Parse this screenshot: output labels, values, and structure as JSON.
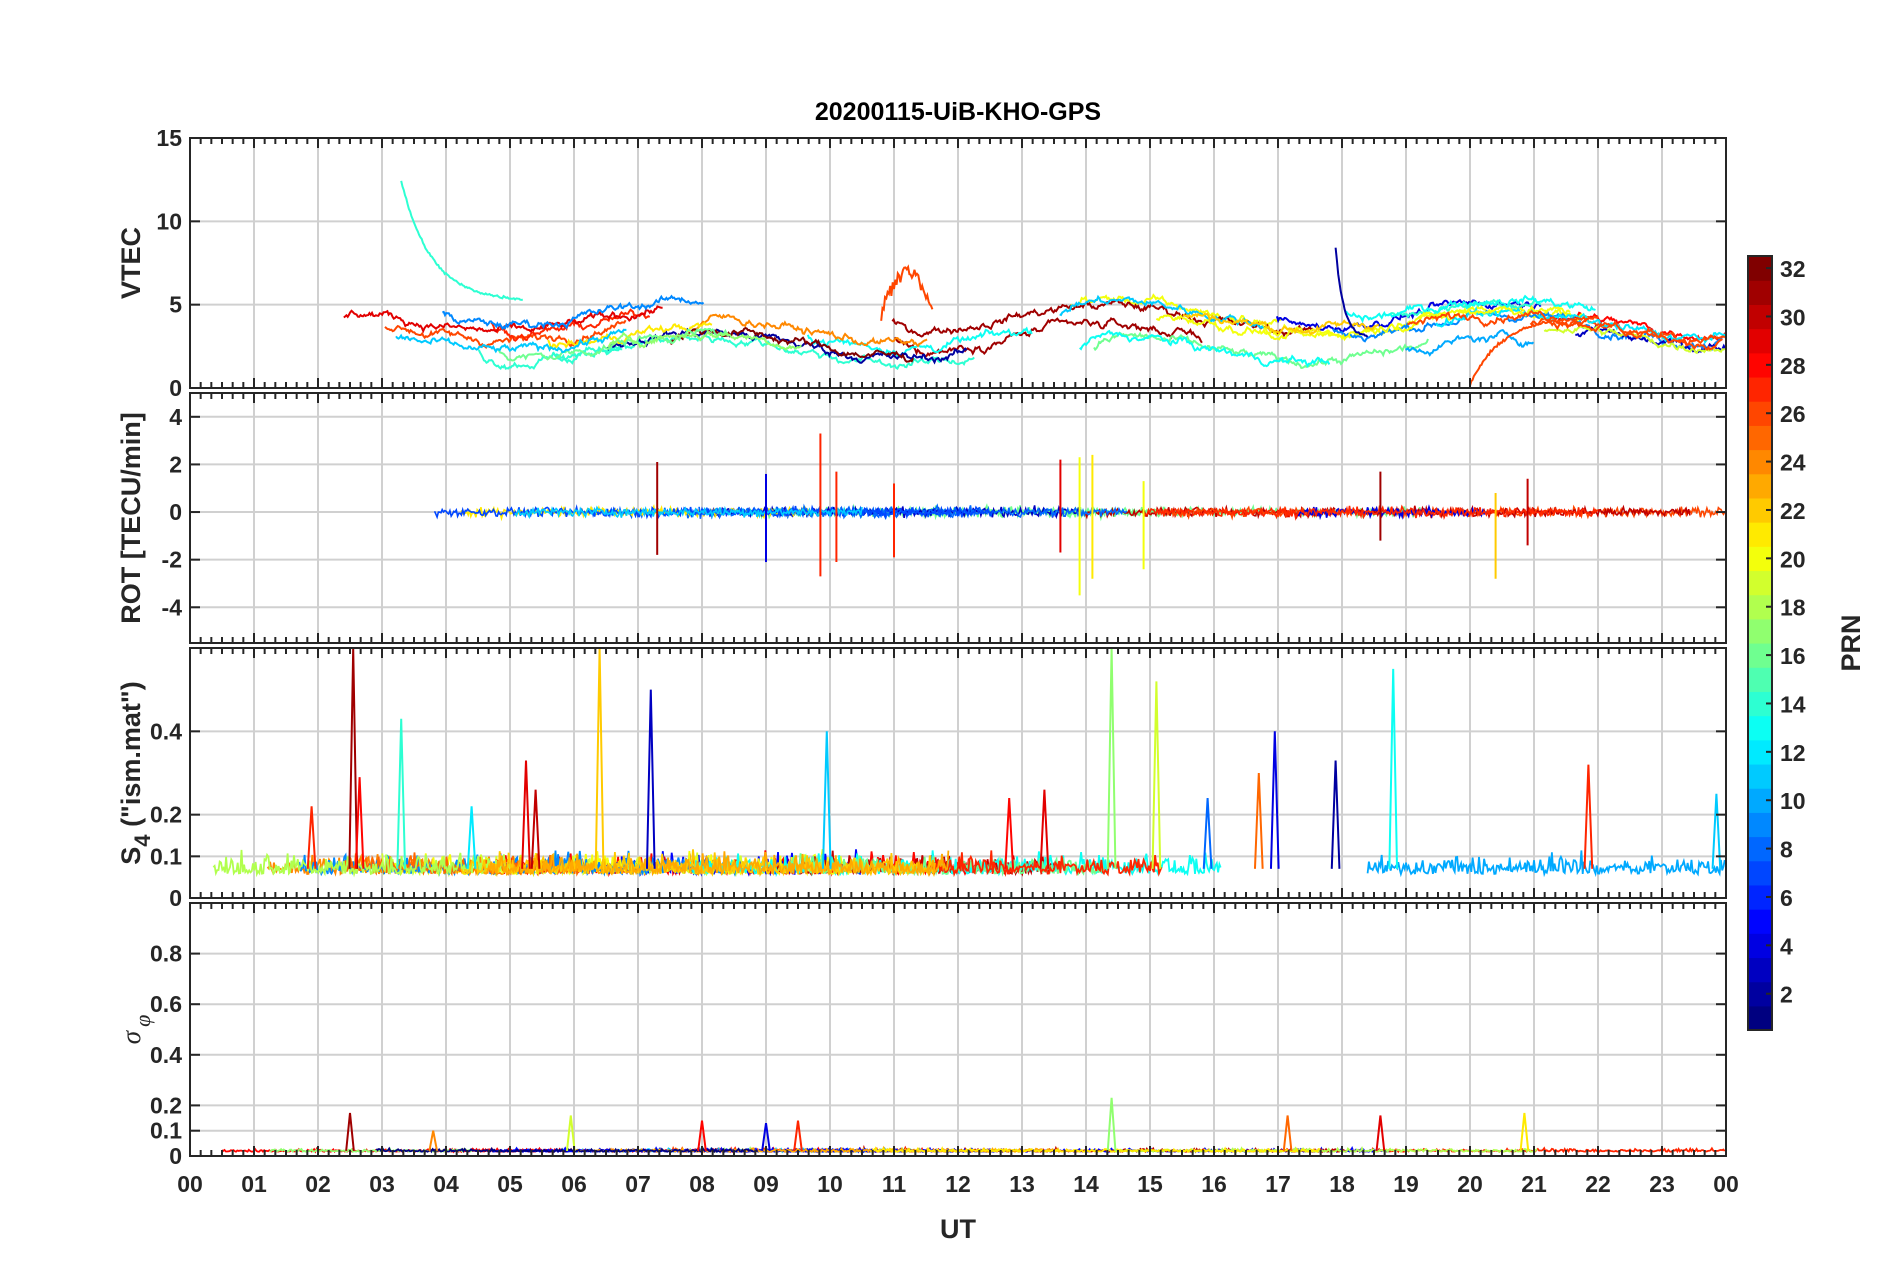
{
  "chart_data": {
    "type": "line",
    "title": "20200115-UiB-KHO-GPS",
    "xlabel": "UT",
    "x_tick_labels": [
      "00",
      "01",
      "02",
      "03",
      "04",
      "05",
      "06",
      "07",
      "08",
      "09",
      "10",
      "11",
      "12",
      "13",
      "14",
      "15",
      "16",
      "17",
      "18",
      "19",
      "20",
      "21",
      "22",
      "23",
      "00"
    ],
    "x_range_hours": [
      0,
      24
    ],
    "grid": true,
    "panels": [
      {
        "id": "vtec",
        "ylabel": "VTEC",
        "ylim": [
          0,
          15
        ],
        "yticks": [
          0,
          5,
          10,
          15
        ],
        "ytick_labels": [
          "0",
          "5",
          "10",
          "15"
        ],
        "series_summary": [
          {
            "prn": 14,
            "t_start": 3.3,
            "t_end": 5.2,
            "value_start": 12.4,
            "value_end": 5.2
          },
          {
            "prn": 2,
            "t_start": 17.9,
            "t_end": 18.4,
            "value_start": 8.4,
            "value_end": 3.0
          },
          {
            "prn": 26,
            "t_start": 10.8,
            "t_end": 11.6,
            "value_peak": 7.1
          },
          {
            "prn": 26,
            "t_start": 20.0,
            "t_end": 22.0,
            "value_start": 0.2,
            "value_end": 4.3
          }
        ],
        "typical_range": [
          1,
          6
        ]
      },
      {
        "id": "rot",
        "ylabel": "ROT [TECU/min]",
        "ylim": [
          -5.5,
          5
        ],
        "yticks": [
          -4,
          -2,
          0,
          2,
          4
        ],
        "ytick_labels": [
          "-4",
          "-2",
          "0",
          "2",
          "4"
        ],
        "spikes": [
          {
            "t": 7.3,
            "max": 2.1,
            "min": -1.8
          },
          {
            "t": 9.0,
            "max": 1.6,
            "min": -2.1
          },
          {
            "t": 9.85,
            "max": 3.3,
            "min": -2.7
          },
          {
            "t": 10.1,
            "max": 1.7,
            "min": -2.1
          },
          {
            "t": 11.0,
            "max": 1.2,
            "min": -1.9
          },
          {
            "t": 13.6,
            "max": 2.2,
            "min": -1.7
          },
          {
            "t": 13.9,
            "max": 2.3,
            "min": -3.5
          },
          {
            "t": 14.1,
            "max": 2.4,
            "min": -2.8
          },
          {
            "t": 14.9,
            "max": 1.3,
            "min": -2.4
          },
          {
            "t": 18.6,
            "max": 1.7,
            "min": -1.2
          },
          {
            "t": 20.4,
            "max": 0.8,
            "min": -2.8
          },
          {
            "t": 20.9,
            "max": 1.4,
            "min": -1.4
          }
        ]
      },
      {
        "id": "s4",
        "ylabel_main": "S",
        "ylabel_sub": "4",
        "ylabel_rest": " (\"ism.mat\")",
        "ylim": [
          0,
          0.6
        ],
        "yticks": [
          0,
          0.1,
          0.2,
          0.4
        ],
        "ytick_labels": [
          "0",
          "0.1",
          "0.2",
          "0.4"
        ],
        "baseline": 0.07,
        "spikes": [
          {
            "t": 1.9,
            "v": 0.22,
            "prn": 27
          },
          {
            "t": 2.55,
            "v": 0.6,
            "prn": 31
          },
          {
            "t": 2.65,
            "v": 0.29,
            "prn": 28
          },
          {
            "t": 3.3,
            "v": 0.43,
            "prn": 14
          },
          {
            "t": 4.4,
            "v": 0.22,
            "prn": 12
          },
          {
            "t": 5.25,
            "v": 0.33,
            "prn": 29
          },
          {
            "t": 5.4,
            "v": 0.26,
            "prn": 30
          },
          {
            "t": 6.4,
            "v": 0.6,
            "prn": 22
          },
          {
            "t": 7.2,
            "v": 0.5,
            "prn": 3
          },
          {
            "t": 9.95,
            "v": 0.4,
            "prn": 11
          },
          {
            "t": 12.8,
            "v": 0.24,
            "prn": 28
          },
          {
            "t": 13.35,
            "v": 0.26,
            "prn": 29
          },
          {
            "t": 14.4,
            "v": 0.6,
            "prn": 17
          },
          {
            "t": 15.1,
            "v": 0.52,
            "prn": 19
          },
          {
            "t": 15.9,
            "v": 0.24,
            "prn": 8
          },
          {
            "t": 16.7,
            "v": 0.3,
            "prn": 25
          },
          {
            "t": 16.95,
            "v": 0.4,
            "prn": 4
          },
          {
            "t": 17.9,
            "v": 0.33,
            "prn": 2
          },
          {
            "t": 18.8,
            "v": 0.55,
            "prn": 13
          },
          {
            "t": 21.85,
            "v": 0.32,
            "prn": 27
          },
          {
            "t": 23.85,
            "v": 0.25,
            "prn": 11
          }
        ]
      },
      {
        "id": "sigma_phi",
        "ylabel_main": "σ",
        "ylabel_sub": "φ",
        "ylim": [
          0,
          1
        ],
        "yticks": [
          0,
          0.1,
          0.2,
          0.4,
          0.6,
          0.8
        ],
        "ytick_labels": [
          "0",
          "0.1",
          "0.2",
          "0.4",
          "0.6",
          "0.8"
        ],
        "baseline": 0.02,
        "spikes": [
          {
            "t": 2.5,
            "v": 0.17,
            "prn": 31
          },
          {
            "t": 3.8,
            "v": 0.1,
            "prn": 24
          },
          {
            "t": 5.95,
            "v": 0.16,
            "prn": 19
          },
          {
            "t": 8.0,
            "v": 0.14,
            "prn": 28
          },
          {
            "t": 9.0,
            "v": 0.13,
            "prn": 4
          },
          {
            "t": 9.5,
            "v": 0.14,
            "prn": 27
          },
          {
            "t": 14.4,
            "v": 0.23,
            "prn": 17
          },
          {
            "t": 17.15,
            "v": 0.16,
            "prn": 25
          },
          {
            "t": 18.6,
            "v": 0.16,
            "prn": 29
          },
          {
            "t": 20.85,
            "v": 0.17,
            "prn": 21
          }
        ]
      }
    ],
    "colorbar": {
      "label": "PRN",
      "range": [
        1,
        32
      ],
      "ticks": [
        2,
        4,
        6,
        8,
        10,
        12,
        14,
        16,
        18,
        20,
        22,
        24,
        26,
        28,
        30,
        32
      ],
      "colormap": "jet",
      "levels": 32
    }
  }
}
